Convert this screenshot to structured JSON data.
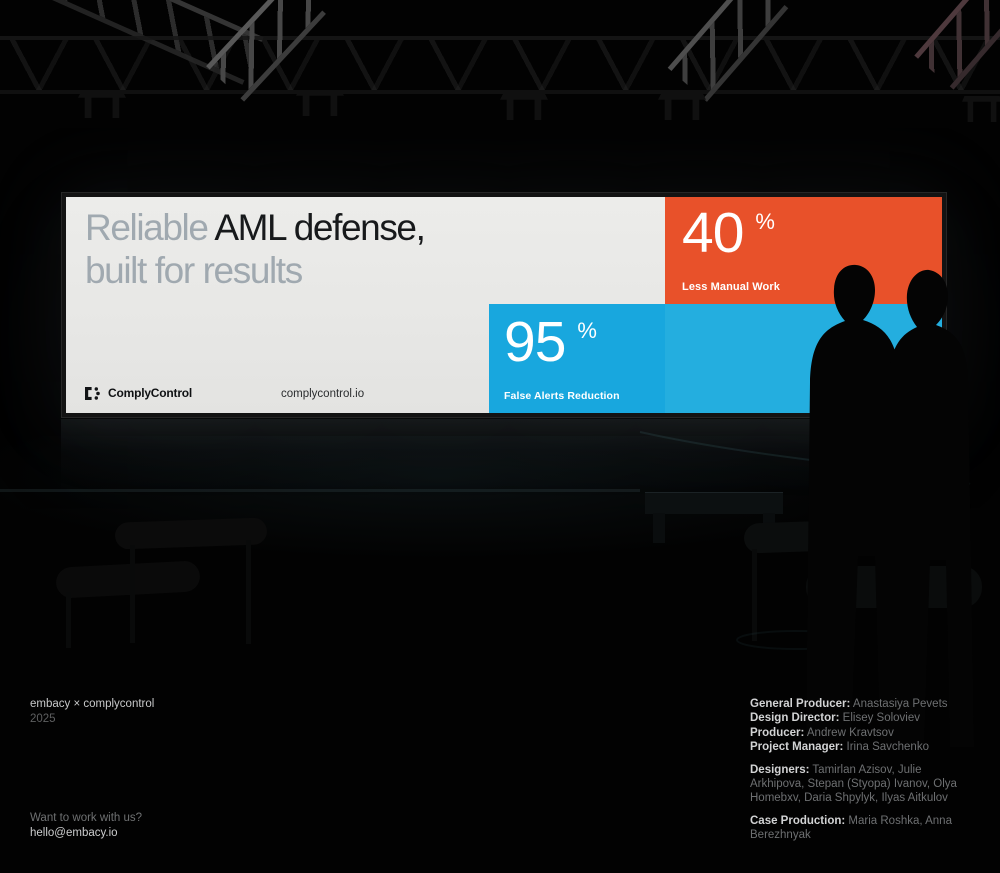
{
  "billboard": {
    "headline_muted_1": "Reliable",
    "headline_strong": " AML defense,",
    "headline_line2": "built for results",
    "brand_name": "ComplyControl",
    "website": "complycontrol.io",
    "stats": [
      {
        "value": "40",
        "unit": "%",
        "label": "Less Manual Work",
        "bg": "#E8512A"
      },
      {
        "value": "95",
        "unit": "%",
        "label": "False Alerts Reduction",
        "bg": "#18A7DE"
      }
    ],
    "secondary_panel_color": "#24AEDF",
    "panel_background": "#EAEAE8",
    "headline_muted_color": "#A0A9B0",
    "headline_strong_color": "#17191B"
  },
  "footer": {
    "project_title": "embacy × complycontrol",
    "year": "2025",
    "cta_question": "Want to work with us?",
    "cta_email": "hello@embacy.io",
    "credit_groups": [
      {
        "rows": [
          {
            "label": "General Producer:",
            "names": "Anastasiya Pevets"
          },
          {
            "label": "Design Director:",
            "names": "Elisey Soloviev"
          },
          {
            "label": "Producer:",
            "names": "Andrew Kravtsov"
          },
          {
            "label": "Project Manager:",
            "names": "Irina Savchenko"
          }
        ]
      },
      {
        "rows": [
          {
            "label": "Designers:",
            "names": "Tamirlan Azisov, Julie Arkhipova, Stepan (Styopa) Ivanov, Olya Homebxv, Daria Shpylyk, Ilyas Aitkulov"
          }
        ]
      },
      {
        "rows": [
          {
            "label": "Case Production:",
            "names": "Maria Roshka, Anna Berezhnyak"
          }
        ]
      }
    ]
  }
}
